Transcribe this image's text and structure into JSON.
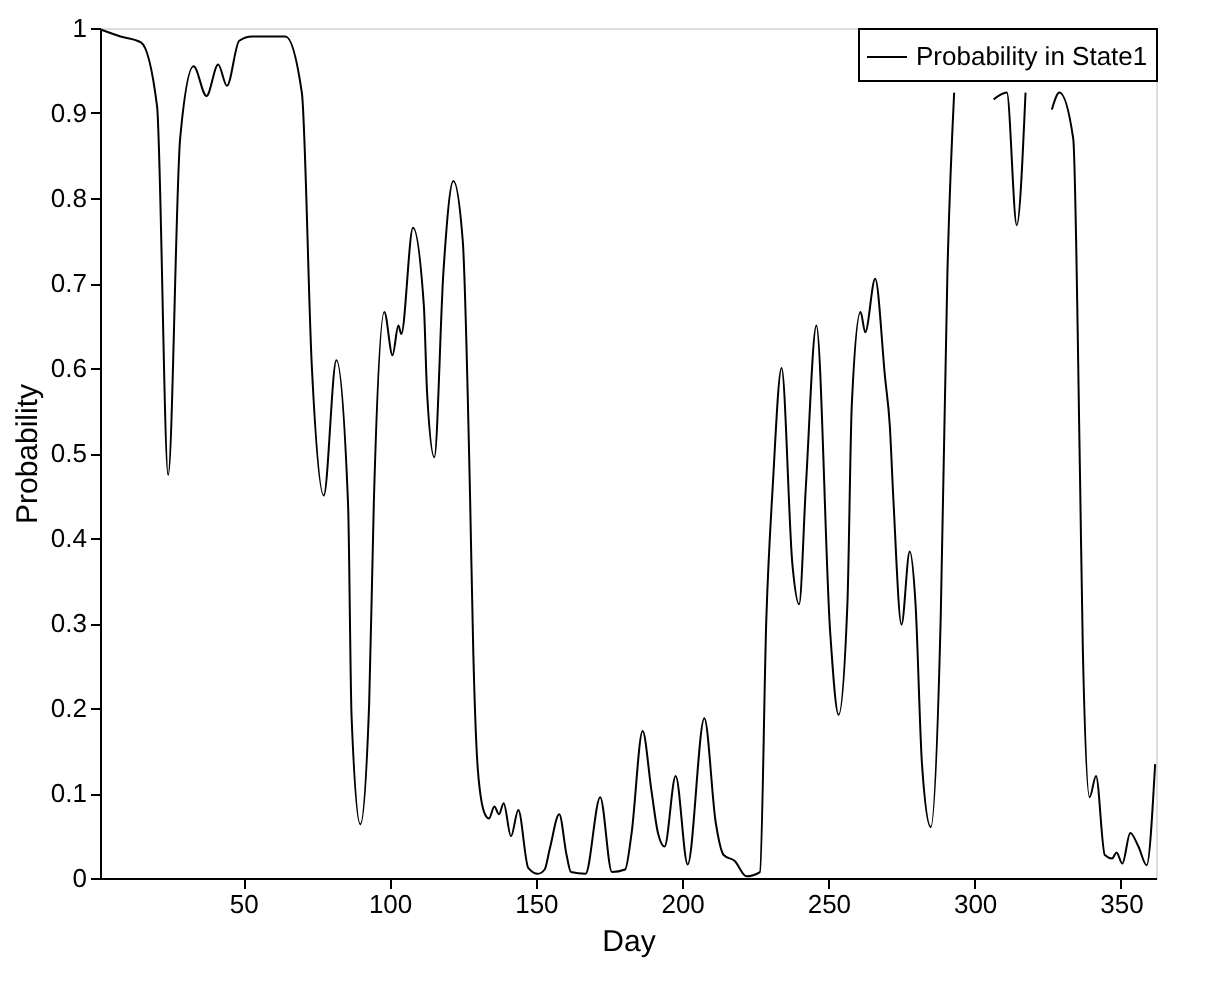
{
  "chart_data": {
    "type": "line",
    "xlabel": "Day",
    "ylabel": "Probability",
    "x": [
      1.4,
      8,
      15,
      20.5,
      24.3,
      28.4,
      33,
      37.4,
      41.4,
      44.4,
      48.6,
      53,
      64.4,
      70,
      73.4,
      77.5,
      81.8,
      85.8,
      87,
      90,
      93,
      94.6,
      98.2,
      101,
      103,
      104,
      108,
      111.7,
      112.8,
      115.3,
      118.4,
      121.8,
      125,
      127.5,
      128.6,
      130.2,
      132.6,
      134,
      135.8,
      137.4,
      139,
      141.5,
      144,
      147.4,
      150.7,
      153,
      154.8,
      158,
      160.5,
      162,
      167,
      172,
      176,
      180.5,
      182.7,
      186.5,
      189.5,
      191.8,
      194,
      197.8,
      201.9,
      207.6,
      211.5,
      214.2,
      218,
      222,
      226.6,
      228.8,
      231,
      234,
      237.7,
      240,
      242.3,
      245.9,
      250.6,
      253.5,
      256.5,
      258,
      261,
      262.6,
      266,
      269.4,
      271,
      272.2,
      275,
      277.8,
      279.8,
      282,
      285,
      288.4,
      290.7,
      293,
      299,
      306.5,
      311,
      314.4,
      317.4,
      321,
      326.4,
      329,
      333.7,
      336,
      337,
      339.3,
      341.5,
      344.5,
      347,
      348.5,
      350.5,
      353.2,
      356,
      358.8,
      361.7
    ],
    "series": [
      {
        "name": "Probability in State1",
        "color": "#000000",
        "values": [
          0.998,
          0.99,
          0.983,
          0.908,
          0.474,
          0.87,
          0.955,
          0.92,
          0.957,
          0.932,
          0.985,
          0.99,
          0.99,
          0.924,
          0.603,
          0.45,
          0.609,
          0.44,
          0.19,
          0.063,
          0.204,
          0.44,
          0.666,
          0.615,
          0.65,
          0.64,
          0.765,
          0.674,
          0.572,
          0.495,
          0.713,
          0.82,
          0.75,
          0.45,
          0.267,
          0.126,
          0.075,
          0.07,
          0.084,
          0.075,
          0.088,
          0.049,
          0.08,
          0.012,
          0.005,
          0.01,
          0.035,
          0.075,
          0.027,
          0.007,
          0.005,
          0.095,
          0.007,
          0.01,
          0.052,
          0.173,
          0.103,
          0.052,
          0.037,
          0.12,
          0.016,
          0.188,
          0.065,
          0.027,
          0.02,
          0.002,
          0.007,
          0.306,
          0.462,
          0.6,
          0.369,
          0.322,
          0.46,
          0.65,
          0.29,
          0.192,
          0.322,
          0.556,
          0.666,
          0.642,
          0.705,
          0.588,
          0.532,
          0.447,
          0.298,
          0.384,
          0.322,
          0.134,
          0.06,
          0.306,
          0.713,
          0.924,
          null,
          0.916,
          0.924,
          0.768,
          0.924,
          null,
          0.904,
          0.924,
          0.87,
          0.478,
          0.267,
          0.095,
          0.12,
          0.027,
          0.023,
          0.03,
          0.017,
          0.053,
          0.037,
          0.015,
          0.134
        ]
      }
    ],
    "xlim": [
      1,
      362
    ],
    "xticks": [
      50,
      100,
      150,
      200,
      250,
      300,
      350
    ],
    "ylim": [
      0,
      1
    ],
    "yticks": [
      0,
      0.1,
      0.2,
      0.3,
      0.4,
      0.5,
      0.6,
      0.7,
      0.8,
      0.9,
      1
    ],
    "grid": false,
    "legend": "top right",
    "marker": "none",
    "line_style": "solid"
  }
}
